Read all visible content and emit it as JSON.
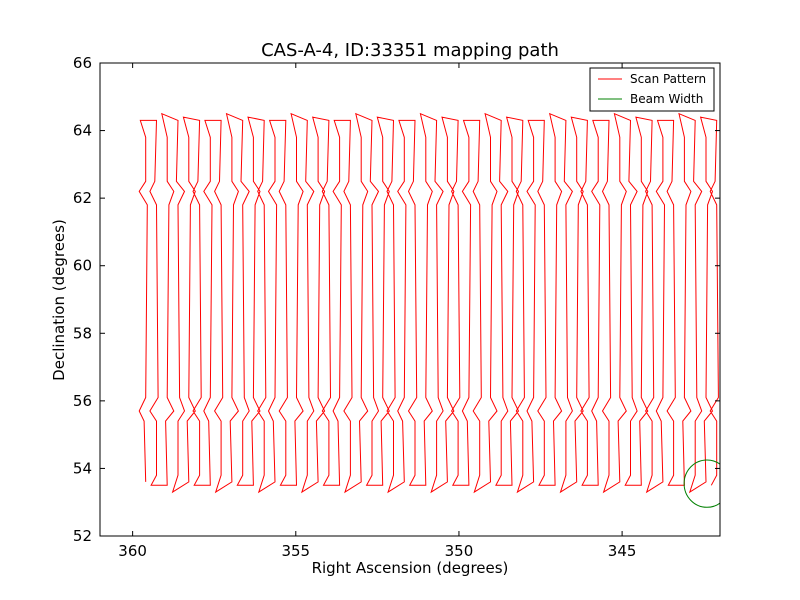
{
  "chart_data": {
    "type": "line",
    "title": "CAS-A-4, ID:33351 mapping path",
    "xlabel": "Right Ascension (degrees)",
    "ylabel": "Declination (degrees)",
    "xlim": [
      361.0,
      342.0
    ],
    "ylim": [
      52,
      66
    ],
    "x_inverted": true,
    "xticks": [
      360,
      355,
      350,
      345
    ],
    "xtick_labels": [
      "360",
      "355",
      "350",
      "345"
    ],
    "yticks": [
      52,
      54,
      56,
      58,
      60,
      62,
      64,
      66
    ],
    "ytick_labels": [
      "52",
      "54",
      "56",
      "58",
      "60",
      "62",
      "64",
      "66"
    ],
    "grid": false,
    "legend_position": "top-right",
    "series": [
      {
        "name": "Scan Pattern",
        "color": "#ff0000",
        "scan": {
          "ra_start": 359.6,
          "ra_end": 342.1,
          "passes": 54,
          "dec_top": 64.3,
          "dec_bottom": 53.6,
          "jog_upper_dec": 62.2,
          "jog_lower_dec": 55.7,
          "jog_width_ra": 0.2
        }
      },
      {
        "name": "Beam Width",
        "color": "#008000",
        "circle": {
          "ra": 342.4,
          "dec": 53.55,
          "radius_deg": 0.7
        }
      }
    ]
  }
}
